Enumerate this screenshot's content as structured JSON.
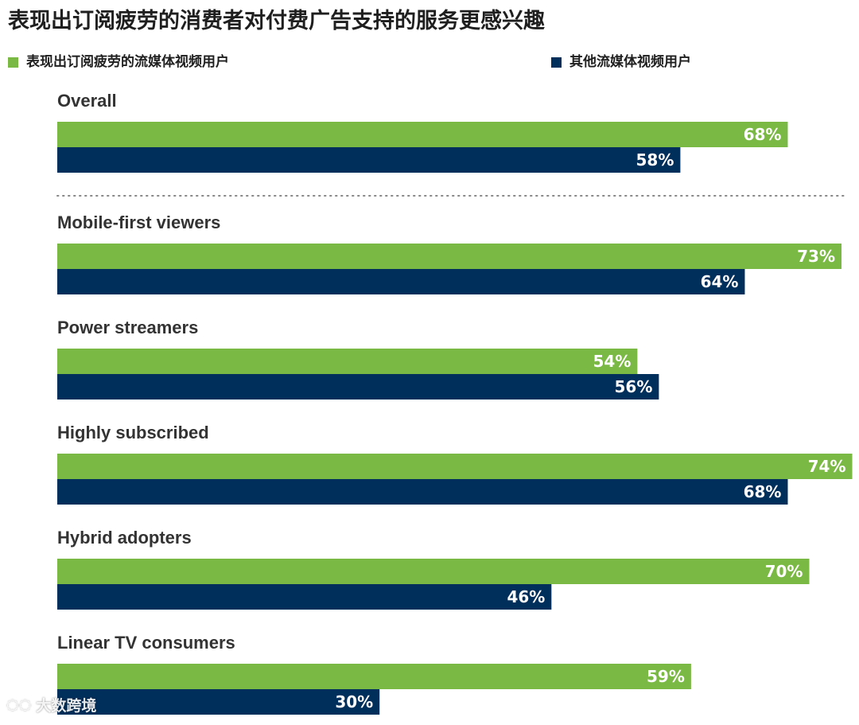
{
  "title": "表现出订阅疲劳的消费者对付费广告支持的服务更感兴趣",
  "colors": {
    "series1": "#7ab944",
    "series2": "#012f5b",
    "separator": "#888888"
  },
  "watermark": {
    "text": "大数跨境",
    "icon": "logo-icon"
  },
  "chart_data": {
    "type": "bar",
    "orientation": "horizontal",
    "title": "表现出订阅疲劳的消费者对付费广告支持的服务更感兴趣",
    "legend_position": "top",
    "value_suffix": "%",
    "categories": [
      "Overall",
      "Mobile-first viewers",
      "Power streamers",
      "Highly subscribed",
      "Hybrid adopters",
      "Linear TV consumers"
    ],
    "series": [
      {
        "name": "表现出订阅疲劳的流媒体视频用户",
        "values": [
          68,
          73,
          54,
          74,
          70,
          59
        ]
      },
      {
        "name": "其他流媒体视频用户",
        "values": [
          58,
          64,
          56,
          68,
          46,
          30
        ]
      }
    ],
    "xlim": [
      0,
      73
    ],
    "grid": false,
    "separator_after": "Overall"
  }
}
